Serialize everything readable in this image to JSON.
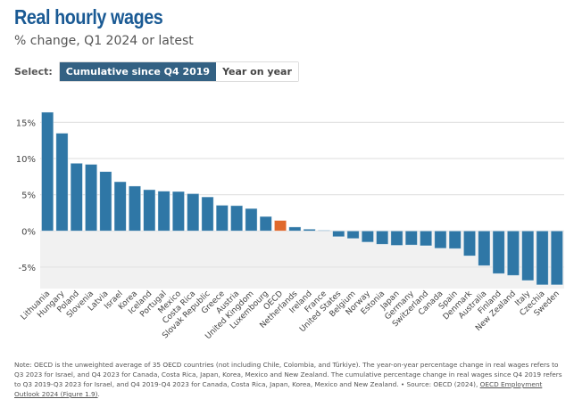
{
  "header": {
    "title": "Real hourly wages",
    "subtitle": "% change, Q1 2024 or latest"
  },
  "selector": {
    "label": "Select:",
    "options": [
      "Cumulative since Q4 2019",
      "Year on year"
    ],
    "selected": "Cumulative since Q4 2019"
  },
  "colors": {
    "bar": "#2f77a6",
    "highlight": "#e0692c",
    "negative_band": "#f1f1f1",
    "grid": "#e3e3e3"
  },
  "chart_data": {
    "type": "bar",
    "title": "Real hourly wages",
    "subtitle": "% change, Q1 2024 or latest",
    "xlabel": "",
    "ylabel": "",
    "ylim": [
      -8,
      17
    ],
    "yticks": [
      -5,
      0,
      5,
      10,
      15
    ],
    "ytick_labels": [
      "-5%",
      "0%",
      "5%",
      "10%",
      "15%"
    ],
    "grid": true,
    "highlight_category": "OECD",
    "categories": [
      "Lithuania",
      "Hungary",
      "Poland",
      "Slovenia",
      "Latvia",
      "Israel",
      "Korea",
      "Iceland",
      "Portugal",
      "Mexico",
      "Costa Rica",
      "Slovak Republic",
      "Greece",
      "Austria",
      "United Kingdom",
      "Luxembourg",
      "OECD",
      "Netherlands",
      "Ireland",
      "France",
      "United States",
      "Belgium",
      "Norway",
      "Estonia",
      "Japan",
      "Germany",
      "Switzerland",
      "Canada",
      "Spain",
      "Denmark",
      "Australia",
      "Finland",
      "New Zealand",
      "Italy",
      "Czechia",
      "Sweden"
    ],
    "values": [
      16.4,
      13.5,
      9.35,
      9.2,
      8.2,
      6.8,
      6.2,
      5.7,
      5.5,
      5.45,
      5.15,
      4.7,
      3.55,
      3.5,
      3.1,
      2.0,
      1.45,
      0.55,
      0.25,
      0.1,
      -0.8,
      -1.05,
      -1.55,
      -1.85,
      -2.0,
      -1.95,
      -2.05,
      -2.4,
      -2.45,
      -3.45,
      -4.8,
      -5.9,
      -6.15,
      -6.85,
      -7.45,
      -7.45
    ]
  },
  "note": {
    "text": "Note: OECD is the unweighted average of 35 OECD countries (not including Chile, Colombia, and Türkiye). The year-on-year percentage change in real wages refers to Q3 2023 for Israel, and Q4 2023 for Canada, Costa Rica, Japan, Korea, Mexico and New Zealand. The cumulative percentage change in real wages since Q4 2019 refers to Q3 2019-Q3 2023 for Israel, and Q4 2019-Q4 2023 for Canada, Costa Rica, Japan, Korea, Mexico and New Zealand. • Source: OECD (2024), ",
    "link_text": "OECD Employment Outlook 2024 (Figure 1.9)",
    "end": "."
  }
}
